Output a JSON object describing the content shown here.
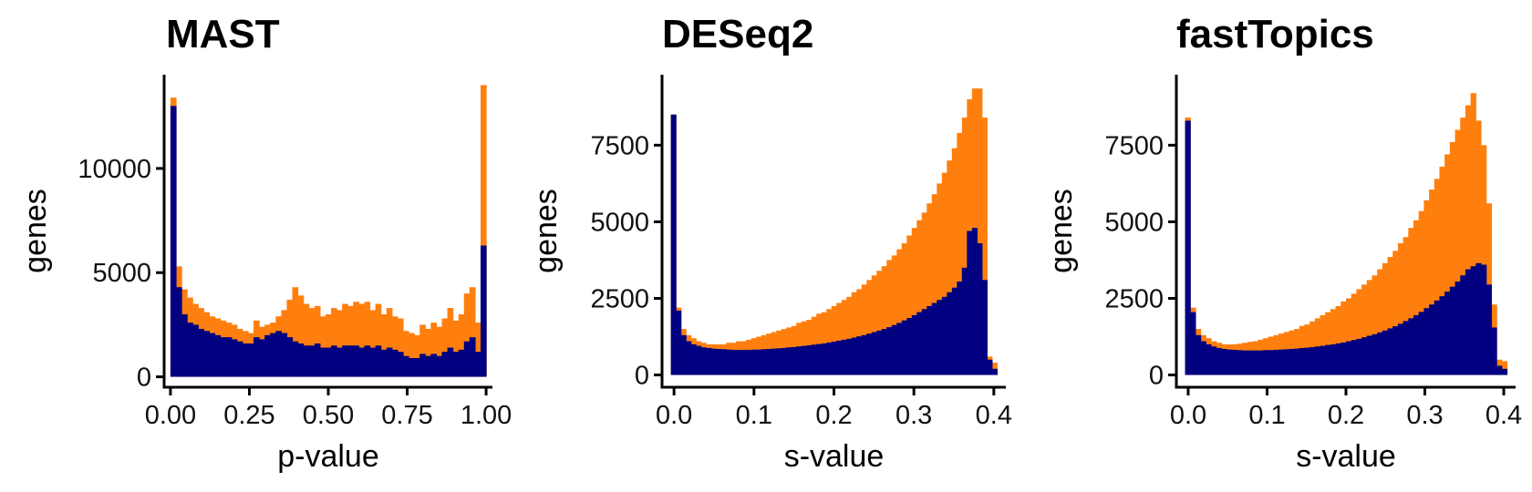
{
  "chart_data": [
    {
      "type": "bar",
      "title": "MAST",
      "xlabel": "p-value",
      "ylabel": "genes",
      "xlim": [
        -0.02,
        1.02
      ],
      "ylim": [
        -500,
        14500
      ],
      "xticks": [
        "0.00",
        "0.25",
        "0.50",
        "0.75",
        "1.00"
      ],
      "yticks": [
        "0",
        "5000",
        "10000"
      ],
      "bin_range": [
        0,
        1
      ],
      "series": [
        {
          "color": "#ff7f0e",
          "values": [
            13400,
            5300,
            4200,
            3800,
            3500,
            3300,
            3100,
            2900,
            2800,
            2700,
            2600,
            2500,
            2300,
            2200,
            2100,
            2700,
            2400,
            2500,
            2600,
            2900,
            3200,
            3700,
            4300,
            3900,
            3500,
            3300,
            3400,
            2900,
            3000,
            3300,
            3200,
            3500,
            3400,
            3600,
            3500,
            3600,
            3200,
            3500,
            3000,
            3300,
            2900,
            2800,
            2200,
            2100,
            2000,
            2500,
            2300,
            2600,
            2400,
            2800,
            3300,
            2700,
            3000,
            4000,
            4300,
            2600,
            14000
          ]
        },
        {
          "color": "#000080",
          "values": [
            13000,
            4300,
            3000,
            2600,
            2500,
            2300,
            2200,
            2100,
            2000,
            1900,
            1900,
            1800,
            1700,
            1600,
            1600,
            1900,
            1800,
            2000,
            2100,
            2200,
            2100,
            1900,
            1700,
            1600,
            1500,
            1500,
            1600,
            1400,
            1400,
            1500,
            1400,
            1500,
            1500,
            1500,
            1400,
            1500,
            1400,
            1500,
            1300,
            1400,
            1300,
            1200,
            1000,
            900,
            900,
            1100,
            1000,
            1100,
            1000,
            1200,
            1400,
            1200,
            1300,
            1700,
            1900,
            1200,
            6300
          ]
        }
      ]
    },
    {
      "type": "bar",
      "title": "DESeq2",
      "xlabel": "s-value",
      "ylabel": "genes",
      "xlim": [
        -0.015,
        0.415
      ],
      "ylim": [
        -400,
        9800
      ],
      "xticks": [
        "0.0",
        "0.1",
        "0.2",
        "0.3",
        "0.4"
      ],
      "yticks": [
        "0",
        "2500",
        "5000",
        "7500"
      ],
      "bin_range": [
        -0.004,
        0.404
      ],
      "series": [
        {
          "color": "#ff7f0e",
          "values": [
            8500,
            2200,
            1500,
            1300,
            1200,
            1100,
            1050,
            1000,
            1000,
            1000,
            1000,
            1050,
            1050,
            1100,
            1100,
            1150,
            1200,
            1250,
            1300,
            1350,
            1400,
            1450,
            1500,
            1550,
            1600,
            1700,
            1750,
            1800,
            1900,
            2000,
            2050,
            2150,
            2250,
            2350,
            2450,
            2550,
            2700,
            2800,
            2950,
            3100,
            3250,
            3400,
            3550,
            3750,
            3900,
            4100,
            4300,
            4550,
            4800,
            5050,
            5300,
            5600,
            5900,
            6250,
            6600,
            7000,
            7400,
            7900,
            8400,
            9000,
            9350,
            9350,
            8400,
            600,
            400
          ]
        },
        {
          "color": "#000080",
          "values": [
            8500,
            2100,
            1300,
            1100,
            1000,
            950,
            900,
            880,
            860,
            850,
            840,
            830,
            820,
            820,
            820,
            820,
            830,
            830,
            840,
            850,
            860,
            870,
            880,
            900,
            910,
            930,
            950,
            970,
            990,
            1010,
            1030,
            1060,
            1090,
            1120,
            1150,
            1180,
            1220,
            1260,
            1300,
            1350,
            1400,
            1450,
            1500,
            1560,
            1630,
            1700,
            1780,
            1860,
            1950,
            2050,
            2150,
            2250,
            2350,
            2450,
            2550,
            2700,
            2850,
            3050,
            3500,
            4700,
            4800,
            4300,
            3100,
            500,
            200
          ]
        }
      ]
    },
    {
      "type": "bar",
      "title": "fastTopics",
      "xlabel": "s-value",
      "ylabel": "genes",
      "xlim": [
        -0.015,
        0.415
      ],
      "ylim": [
        -400,
        9800
      ],
      "xticks": [
        "0.0",
        "0.1",
        "0.2",
        "0.3",
        "0.4"
      ],
      "yticks": [
        "0",
        "2500",
        "5000",
        "7500"
      ],
      "bin_range": [
        -0.004,
        0.404
      ],
      "series": [
        {
          "color": "#ff7f0e",
          "values": [
            8400,
            2200,
            1500,
            1300,
            1200,
            1100,
            1050,
            1000,
            1000,
            1000,
            1020,
            1050,
            1080,
            1100,
            1150,
            1200,
            1250,
            1300,
            1350,
            1400,
            1450,
            1500,
            1600,
            1650,
            1750,
            1850,
            1950,
            2050,
            2150,
            2250,
            2400,
            2500,
            2650,
            2800,
            2950,
            3100,
            3250,
            3450,
            3650,
            3850,
            4050,
            4300,
            4500,
            4800,
            5050,
            5350,
            5700,
            6050,
            6400,
            6800,
            7200,
            7600,
            8000,
            8400,
            8800,
            9200,
            8300,
            7500,
            5600,
            2300,
            500,
            450
          ]
        },
        {
          "color": "#000080",
          "values": [
            8300,
            2050,
            1300,
            1100,
            1000,
            930,
            880,
            850,
            830,
            820,
            810,
            800,
            800,
            800,
            800,
            810,
            810,
            820,
            830,
            840,
            850,
            860,
            880,
            890,
            910,
            930,
            950,
            980,
            1000,
            1030,
            1060,
            1100,
            1140,
            1180,
            1230,
            1280,
            1330,
            1390,
            1450,
            1520,
            1590,
            1670,
            1760,
            1850,
            1950,
            2060,
            2180,
            2300,
            2430,
            2570,
            2720,
            2880,
            3050,
            3250,
            3450,
            3550,
            3650,
            3600,
            2950,
            1550,
            300,
            200
          ]
        }
      ]
    }
  ]
}
